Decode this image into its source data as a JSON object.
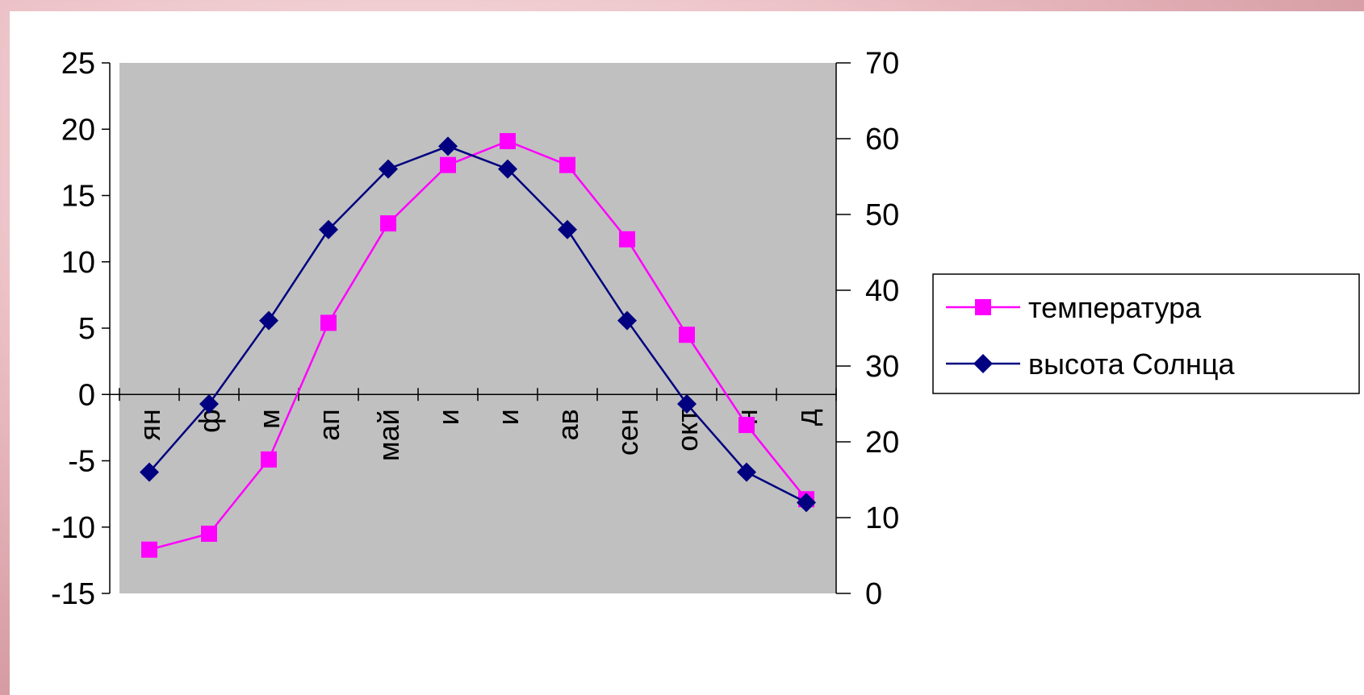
{
  "chart_data": {
    "type": "line",
    "categories": [
      "ян",
      "ф",
      "м",
      "ап",
      "май",
      "и",
      "и",
      "ав",
      "сен",
      "окт",
      "н",
      "д"
    ],
    "series": [
      {
        "name": "температура",
        "axis": "left",
        "color": "#ff00ff",
        "marker": "square",
        "values": [
          -11.7,
          -10.5,
          -4.9,
          5.4,
          12.9,
          17.3,
          19.1,
          17.3,
          11.7,
          4.5,
          -2.3,
          -7.9
        ]
      },
      {
        "name": "высота Солнца",
        "axis": "right",
        "color": "#000080",
        "marker": "diamond",
        "values": [
          16,
          25,
          36,
          48,
          56,
          59,
          56,
          48,
          36,
          25,
          16,
          12
        ]
      }
    ],
    "y_left": {
      "min": -15,
      "max": 25,
      "step": 5,
      "ticks": [
        "-15",
        "-10",
        "-5",
        "0",
        "5",
        "10",
        "15",
        "20",
        "25"
      ]
    },
    "y_right": {
      "min": 0,
      "max": 70,
      "step": 10,
      "ticks": [
        "0",
        "10",
        "20",
        "30",
        "40",
        "50",
        "60",
        "70"
      ]
    },
    "plot_background": "#c0c0c0",
    "legend_position": "right",
    "grid": false
  }
}
